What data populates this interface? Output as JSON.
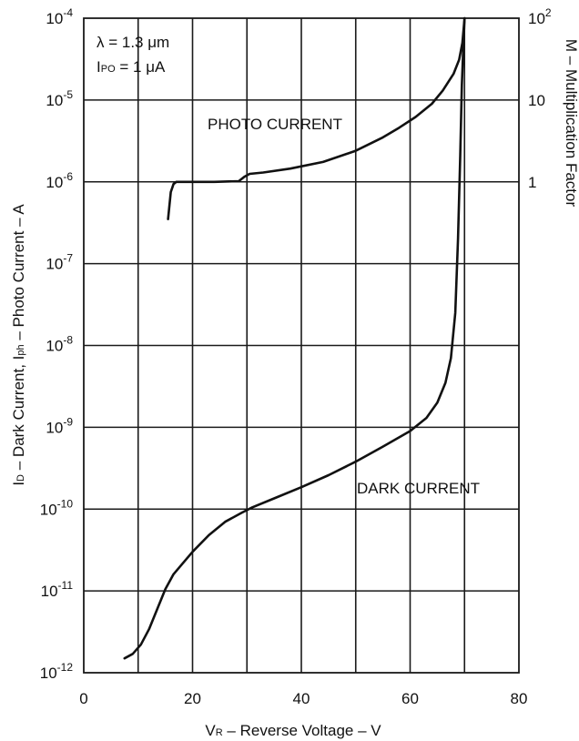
{
  "chart_data": {
    "type": "line",
    "title": "",
    "xlabel": {
      "main": "V",
      "sub": "R",
      "rest": " – Reverse Voltage – V"
    },
    "ylabel": {
      "p1": "I",
      "s1": "D",
      "p2": " – Dark Current, I",
      "s2": "ph",
      "p3": " – Photo Current – A"
    },
    "y2label": "M – Multiplication Factor",
    "xlim": [
      0,
      80
    ],
    "ylim": [
      1e-12,
      0.0001
    ],
    "yscale": "log",
    "grid": true,
    "x_ticks": [
      {
        "value": 0,
        "label": "0"
      },
      {
        "value": 20,
        "label": "20"
      },
      {
        "value": 40,
        "label": "40"
      },
      {
        "value": 60,
        "label": "60"
      },
      {
        "value": 80,
        "label": "80"
      }
    ],
    "y_ticks": [
      {
        "value": -4,
        "base": "10",
        "exp": "-4"
      },
      {
        "value": -5,
        "base": "10",
        "exp": "-5"
      },
      {
        "value": -6,
        "base": "10",
        "exp": "-6"
      },
      {
        "value": -7,
        "base": "10",
        "exp": "-7"
      },
      {
        "value": -8,
        "base": "10",
        "exp": "-8"
      },
      {
        "value": -9,
        "base": "10",
        "exp": "-9"
      },
      {
        "value": -10,
        "base": "10",
        "exp": "-10"
      },
      {
        "value": -11,
        "base": "10",
        "exp": "-11"
      },
      {
        "value": -12,
        "base": "10",
        "exp": "-12"
      }
    ],
    "y2_ticks": [
      {
        "value": -4,
        "base": "10",
        "exp": "2"
      },
      {
        "value": -5,
        "base": "10",
        "exp": ""
      },
      {
        "value": -6,
        "base": "1",
        "exp": ""
      }
    ],
    "annotations": {
      "line1": "λ = 1.3 μm",
      "line2_pre": "I",
      "line2_sub": "PO",
      "line2_post": " = 1 μA"
    },
    "series": [
      {
        "name": "PHOTO CURRENT",
        "x": [
          15.5,
          16.0,
          16.5,
          17.0,
          18.0,
          20.0,
          24.0,
          28.5,
          29.5,
          30.5,
          33.0,
          38.0,
          44.0,
          50.0,
          55.0,
          58.0,
          61.0,
          64.0,
          66.0,
          68.0,
          69.0,
          69.6,
          70.0
        ],
        "y": [
          3.5e-07,
          7.5e-07,
          9.4e-07,
          1e-06,
          1e-06,
          1e-06,
          1e-06,
          1.02e-06,
          1.15e-06,
          1.25e-06,
          1.3e-06,
          1.45e-06,
          1.75e-06,
          2.4e-06,
          3.5e-06,
          4.6e-06,
          6.2e-06,
          9e-06,
          1.3e-05,
          2.1e-05,
          3.1e-05,
          5e-05,
          0.0001
        ]
      },
      {
        "name": "DARK CURRENT",
        "x": [
          7.5,
          9.0,
          10.5,
          12.0,
          13.5,
          15.0,
          16.5,
          18.0,
          20.0,
          23.0,
          26.0,
          29.0,
          31.0,
          35.0,
          40.0,
          45.0,
          50.0,
          55.0,
          60.0,
          63.0,
          65.0,
          66.5,
          67.5,
          68.3,
          68.8,
          69.2,
          69.5,
          69.8,
          70.0
        ],
        "y": [
          1.5e-12,
          1.7e-12,
          2.2e-12,
          3.4e-12,
          6e-12,
          1.05e-11,
          1.6e-11,
          2.1e-11,
          3e-11,
          4.8e-11,
          7e-11,
          9e-11,
          1.05e-10,
          1.35e-10,
          1.85e-10,
          2.6e-10,
          3.8e-10,
          5.8e-10,
          9e-10,
          1.3e-09,
          2e-09,
          3.5e-09,
          7e-09,
          2.5e-08,
          2e-07,
          2e-06,
          1.5e-05,
          5e-05,
          0.0001
        ]
      }
    ]
  }
}
